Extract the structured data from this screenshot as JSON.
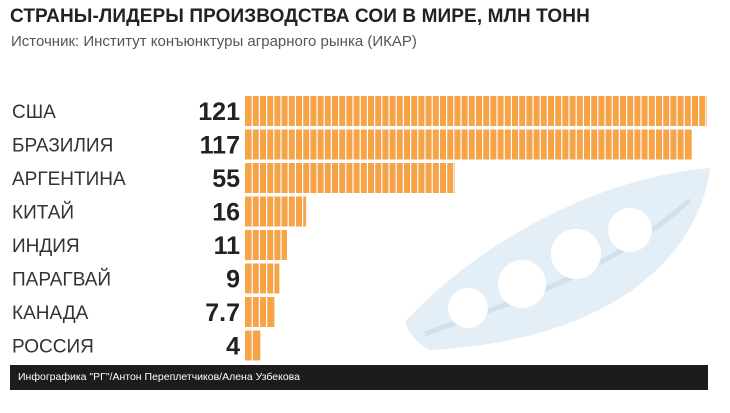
{
  "title": "СТРАНЫ-ЛИДЕРЫ ПРОИЗВОДСТВА СОИ В МИРЕ, МЛН ТОНН",
  "subtitle": "Источник: Институт конъюнктуры аграрного рынка (ИКАР)",
  "footer": "Инфографика \"РГ\"/Антон Переплетчиков/Алена Узбекова",
  "chart_data": {
    "type": "bar",
    "orientation": "horizontal",
    "title": "СТРАНЫ-ЛИДЕРЫ ПРОИЗВОДСТВА СОИ В МИРЕ, МЛН ТОНН",
    "categories": [
      "США",
      "БРАЗИЛИЯ",
      "АРГЕНТИНА",
      "КИТАЙ",
      "ИНДИЯ",
      "ПАРАГВАЙ",
      "КАНАДА",
      "РОССИЯ"
    ],
    "values": [
      121,
      117,
      55,
      16,
      11,
      9,
      7.7,
      4
    ],
    "value_labels": [
      "121",
      "117",
      "55",
      "16",
      "11",
      "9",
      "7.7",
      "4"
    ],
    "bar_color": "#f7a449",
    "decoration": "soy-pod-icon"
  }
}
